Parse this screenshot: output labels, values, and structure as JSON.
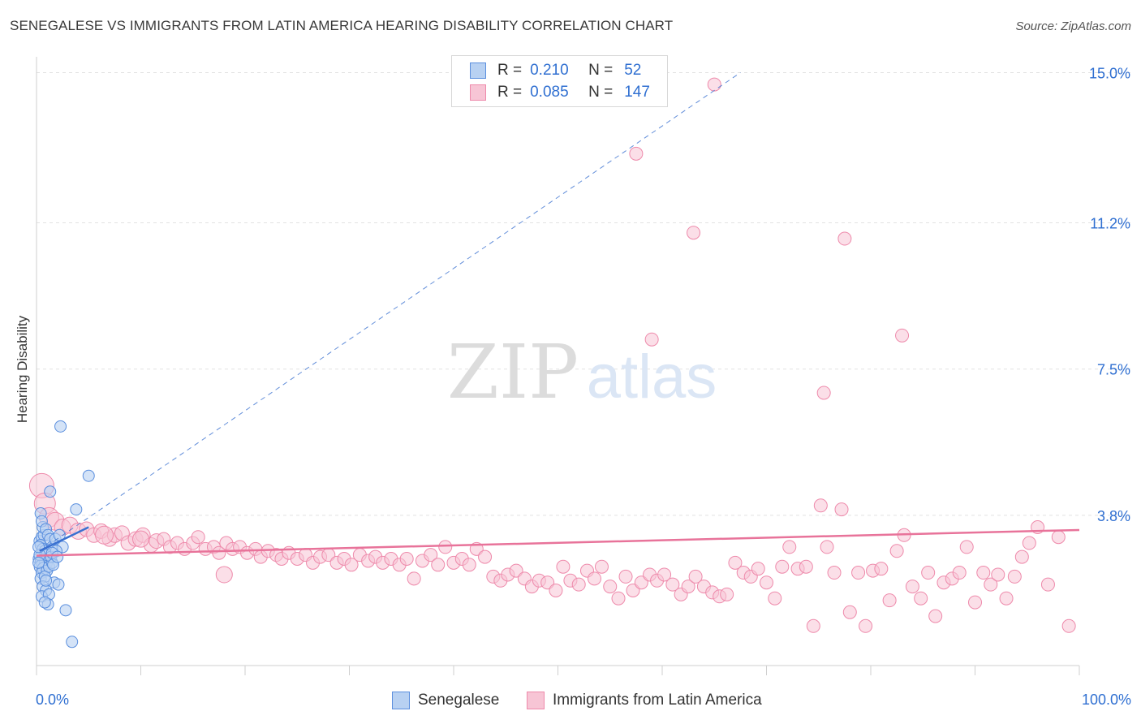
{
  "title": "SENEGALESE VS IMMIGRANTS FROM LATIN AMERICA HEARING DISABILITY CORRELATION CHART",
  "source": "Source: ZipAtlas.com",
  "watermark": {
    "zip": "ZIP",
    "atlas": "atlas"
  },
  "legend": {
    "rows": [
      {
        "r_label": "R =",
        "r_value": "0.210",
        "n_label": "N =",
        "n_value": "52"
      },
      {
        "r_label": "R =",
        "r_value": "0.085",
        "n_label": "N =",
        "n_value": "147"
      }
    ]
  },
  "colors": {
    "blue_fill": "#b8d1f2",
    "blue_stroke": "#5b8fde",
    "blue_line": "#3a70d0",
    "pink_fill": "#f7c5d5",
    "pink_stroke": "#ee8aab",
    "pink_line": "#e8739a",
    "grid": "#e2e2e2",
    "axis_text": "#2f6fd1"
  },
  "chart_data": {
    "type": "scatter",
    "title": "SENEGALESE VS IMMIGRANTS FROM LATIN AMERICA HEARING DISABILITY CORRELATION CHART",
    "xlabel": "",
    "ylabel": "Hearing Disability",
    "xlim": [
      0,
      100
    ],
    "ylim": [
      0,
      15.4
    ],
    "x_tick_labels": [
      "0.0%",
      "100.0%"
    ],
    "y_ticks": [
      3.8,
      7.5,
      11.2,
      15.0
    ],
    "y_tick_labels": [
      "3.8%",
      "7.5%",
      "11.2%",
      "15.0%"
    ],
    "legend_position": "bottom",
    "series": [
      {
        "name": "Senegalese",
        "R": 0.21,
        "N": 52,
        "trend_solid": {
          "x0": 0.3,
          "y0": 2.9,
          "x1": 5.0,
          "y1": 3.5
        },
        "trend_dashed": {
          "x0": 0.3,
          "y0": 2.9,
          "x1": 67.5,
          "y1": 15.0
        },
        "points": [
          [
            0.3,
            3.15,
            7
          ],
          [
            0.5,
            3.25,
            7
          ],
          [
            0.7,
            3.3,
            7
          ],
          [
            0.4,
            3.05,
            7
          ],
          [
            0.6,
            2.95,
            7
          ],
          [
            0.8,
            2.9,
            7
          ],
          [
            0.3,
            2.7,
            8
          ],
          [
            0.5,
            2.65,
            8
          ],
          [
            0.6,
            2.55,
            8
          ],
          [
            0.9,
            2.6,
            8
          ],
          [
            0.4,
            2.5,
            8
          ],
          [
            0.7,
            2.45,
            8
          ],
          [
            0.5,
            2.35,
            7
          ],
          [
            1.0,
            2.4,
            7
          ],
          [
            0.4,
            2.2,
            7
          ],
          [
            0.8,
            2.25,
            7
          ],
          [
            1.2,
            2.5,
            7
          ],
          [
            1.5,
            2.6,
            7
          ],
          [
            0.6,
            3.5,
            7
          ],
          [
            0.4,
            3.85,
            7
          ],
          [
            0.5,
            3.65,
            7
          ],
          [
            0.9,
            3.45,
            7
          ],
          [
            1.1,
            3.3,
            7
          ],
          [
            1.3,
            3.2,
            7
          ],
          [
            1.5,
            3.0,
            7
          ],
          [
            1.8,
            3.2,
            7
          ],
          [
            2.2,
            3.3,
            7
          ],
          [
            2.5,
            3.0,
            7
          ],
          [
            1.0,
            2.8,
            7
          ],
          [
            1.4,
            2.75,
            7
          ],
          [
            1.9,
            2.9,
            7
          ],
          [
            0.3,
            2.8,
            7
          ],
          [
            1.6,
            2.55,
            7
          ],
          [
            0.6,
            2.0,
            7
          ],
          [
            0.9,
            1.9,
            7
          ],
          [
            0.5,
            1.75,
            7
          ],
          [
            1.2,
            1.8,
            7
          ],
          [
            1.7,
            2.1,
            7
          ],
          [
            0.9,
            2.15,
            7
          ],
          [
            1.1,
            1.55,
            7
          ],
          [
            0.8,
            1.6,
            7
          ],
          [
            2.1,
            2.05,
            7
          ],
          [
            2.8,
            1.4,
            7
          ],
          [
            3.4,
            0.6,
            7
          ],
          [
            2.3,
            6.05,
            7
          ],
          [
            5.0,
            4.8,
            7
          ],
          [
            3.8,
            3.95,
            7
          ],
          [
            1.3,
            4.4,
            7
          ],
          [
            0.2,
            2.6,
            7
          ],
          [
            0.2,
            3.0,
            7
          ],
          [
            1.5,
            2.85,
            7
          ],
          [
            2.0,
            2.75,
            7
          ]
        ]
      },
      {
        "name": "Immigrants from Latin America",
        "R": 0.085,
        "N": 147,
        "trend": {
          "x0": 0.0,
          "y0": 2.78,
          "x1": 100.0,
          "y1": 3.43
        },
        "points": [
          [
            0.5,
            4.55,
            15
          ],
          [
            0.8,
            4.1,
            13
          ],
          [
            1.2,
            3.75,
            12
          ],
          [
            1.8,
            3.65,
            11
          ],
          [
            2.5,
            3.5,
            10
          ],
          [
            3.2,
            3.55,
            10
          ],
          [
            4.0,
            3.4,
            10
          ],
          [
            4.8,
            3.45,
            9
          ],
          [
            5.5,
            3.3,
            9
          ],
          [
            6.2,
            3.4,
            9
          ],
          [
            7.0,
            3.2,
            9
          ],
          [
            7.5,
            3.3,
            9
          ],
          [
            8.2,
            3.35,
            9
          ],
          [
            8.8,
            3.1,
            9
          ],
          [
            9.5,
            3.2,
            9
          ],
          [
            10.2,
            3.3,
            9
          ],
          [
            11.0,
            3.05,
            9
          ],
          [
            11.5,
            3.15,
            9
          ],
          [
            12.2,
            3.2,
            8
          ],
          [
            12.8,
            3.0,
            8
          ],
          [
            13.5,
            3.1,
            8
          ],
          [
            14.2,
            2.95,
            8
          ],
          [
            15.0,
            3.1,
            8
          ],
          [
            15.5,
            3.25,
            8
          ],
          [
            16.2,
            2.95,
            8
          ],
          [
            17.0,
            3.0,
            8
          ],
          [
            17.5,
            2.85,
            8
          ],
          [
            18.2,
            3.1,
            8
          ],
          [
            18.8,
            2.95,
            8
          ],
          [
            19.5,
            3.0,
            8
          ],
          [
            20.2,
            2.85,
            8
          ],
          [
            21.0,
            2.95,
            8
          ],
          [
            21.5,
            2.75,
            8
          ],
          [
            22.2,
            2.9,
            8
          ],
          [
            23.0,
            2.8,
            8
          ],
          [
            23.5,
            2.7,
            8
          ],
          [
            24.2,
            2.85,
            8
          ],
          [
            25.0,
            2.7,
            8
          ],
          [
            25.8,
            2.8,
            8
          ],
          [
            26.5,
            2.6,
            8
          ],
          [
            27.2,
            2.75,
            8
          ],
          [
            28.0,
            2.8,
            8
          ],
          [
            28.8,
            2.6,
            8
          ],
          [
            29.5,
            2.7,
            8
          ],
          [
            30.2,
            2.55,
            8
          ],
          [
            31.0,
            2.8,
            8
          ],
          [
            31.8,
            2.65,
            8
          ],
          [
            32.5,
            2.75,
            8
          ],
          [
            33.2,
            2.6,
            8
          ],
          [
            34.0,
            2.7,
            8
          ],
          [
            34.8,
            2.55,
            8
          ],
          [
            35.5,
            2.7,
            8
          ],
          [
            36.2,
            2.2,
            8
          ],
          [
            37.0,
            2.65,
            8
          ],
          [
            37.8,
            2.8,
            8
          ],
          [
            38.5,
            2.55,
            8
          ],
          [
            39.2,
            3.0,
            8
          ],
          [
            40.0,
            2.6,
            8
          ],
          [
            40.8,
            2.7,
            8
          ],
          [
            41.5,
            2.55,
            8
          ],
          [
            42.2,
            2.95,
            8
          ],
          [
            43.0,
            2.75,
            8
          ],
          [
            43.8,
            2.25,
            8
          ],
          [
            44.5,
            2.15,
            8
          ],
          [
            45.2,
            2.3,
            8
          ],
          [
            46.0,
            2.4,
            8
          ],
          [
            46.8,
            2.2,
            8
          ],
          [
            47.5,
            2.0,
            8
          ],
          [
            48.2,
            2.15,
            8
          ],
          [
            49.0,
            2.1,
            8
          ],
          [
            49.8,
            1.9,
            8
          ],
          [
            50.5,
            2.5,
            8
          ],
          [
            51.2,
            2.15,
            8
          ],
          [
            52.0,
            2.05,
            8
          ],
          [
            52.8,
            2.4,
            8
          ],
          [
            53.5,
            2.2,
            8
          ],
          [
            54.2,
            2.5,
            8
          ],
          [
            55.0,
            2.0,
            8
          ],
          [
            55.8,
            1.7,
            8
          ],
          [
            56.5,
            2.25,
            8
          ],
          [
            57.2,
            1.9,
            8
          ],
          [
            58.0,
            2.1,
            8
          ],
          [
            58.8,
            2.3,
            8
          ],
          [
            59.5,
            2.15,
            8
          ],
          [
            60.2,
            2.3,
            8
          ],
          [
            61.0,
            2.05,
            8
          ],
          [
            61.8,
            1.8,
            8
          ],
          [
            62.5,
            2.0,
            8
          ],
          [
            63.2,
            2.25,
            8
          ],
          [
            64.0,
            2.0,
            8
          ],
          [
            64.8,
            1.85,
            8
          ],
          [
            65.5,
            1.75,
            8
          ],
          [
            66.2,
            1.8,
            8
          ],
          [
            67.0,
            2.6,
            8
          ],
          [
            67.8,
            2.35,
            8
          ],
          [
            68.5,
            2.25,
            8
          ],
          [
            69.2,
            2.45,
            8
          ],
          [
            70.0,
            2.1,
            8
          ],
          [
            70.8,
            1.7,
            8
          ],
          [
            71.5,
            2.5,
            8
          ],
          [
            72.2,
            3.0,
            8
          ],
          [
            73.0,
            2.45,
            8
          ],
          [
            73.8,
            2.5,
            8
          ],
          [
            74.5,
            1.0,
            8
          ],
          [
            75.2,
            4.05,
            8
          ],
          [
            75.8,
            3.0,
            8
          ],
          [
            76.5,
            2.35,
            8
          ],
          [
            77.2,
            3.95,
            8
          ],
          [
            78.0,
            1.35,
            8
          ],
          [
            78.8,
            2.35,
            8
          ],
          [
            79.5,
            1.0,
            8
          ],
          [
            80.2,
            2.4,
            8
          ],
          [
            81.0,
            2.45,
            8
          ],
          [
            81.8,
            1.65,
            8
          ],
          [
            82.5,
            2.9,
            8
          ],
          [
            83.2,
            3.3,
            8
          ],
          [
            84.0,
            2.0,
            8
          ],
          [
            84.8,
            1.7,
            8
          ],
          [
            85.5,
            2.35,
            8
          ],
          [
            86.2,
            1.25,
            8
          ],
          [
            87.0,
            2.1,
            8
          ],
          [
            87.8,
            2.2,
            8
          ],
          [
            88.5,
            2.35,
            8
          ],
          [
            89.2,
            3.0,
            8
          ],
          [
            90.0,
            1.6,
            8
          ],
          [
            90.8,
            2.35,
            8
          ],
          [
            91.5,
            2.05,
            8
          ],
          [
            92.2,
            2.3,
            8
          ],
          [
            93.0,
            1.7,
            8
          ],
          [
            93.8,
            2.25,
            8
          ],
          [
            94.5,
            2.75,
            8
          ],
          [
            95.2,
            3.1,
            8
          ],
          [
            96.0,
            3.5,
            8
          ],
          [
            97.0,
            2.05,
            8
          ],
          [
            98.0,
            3.25,
            8
          ],
          [
            99.0,
            1.0,
            8
          ],
          [
            65.0,
            14.7,
            8
          ],
          [
            57.5,
            12.95,
            8
          ],
          [
            63.0,
            10.95,
            8
          ],
          [
            77.5,
            10.8,
            8
          ],
          [
            59.0,
            8.25,
            8
          ],
          [
            83.0,
            8.35,
            8
          ],
          [
            75.5,
            6.9,
            8
          ],
          [
            18.0,
            2.3,
            10
          ],
          [
            10.0,
            3.2,
            10
          ],
          [
            6.5,
            3.3,
            11
          ]
        ]
      }
    ]
  },
  "bottom_legend": {
    "items": [
      "Senegalese",
      "Immigrants from Latin America"
    ]
  }
}
